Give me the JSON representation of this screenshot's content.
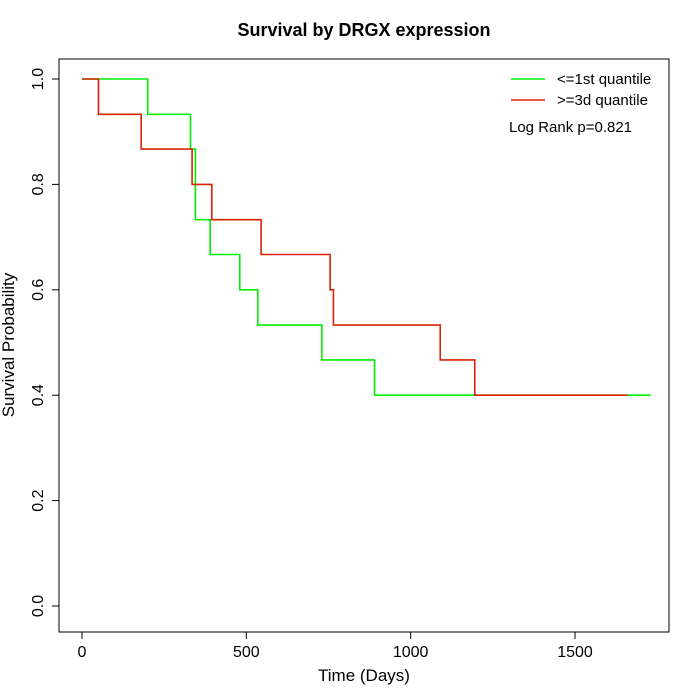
{
  "chart_data": {
    "type": "line",
    "title": "Survival by DRGX expression",
    "xlabel": "Time (Days)",
    "ylabel": "Survival Probability",
    "xlim": [
      0,
      1800
    ],
    "ylim": [
      0,
      1.0
    ],
    "x_ticks": [
      0,
      500,
      1000,
      1500
    ],
    "y_ticks": [
      0.0,
      0.2,
      0.4,
      0.6,
      0.8,
      1.0
    ],
    "x_tick_labels": [
      "0",
      "500",
      "1000",
      "1500"
    ],
    "y_tick_labels": [
      "0.0",
      "0.2",
      "0.4",
      "0.6",
      "0.8",
      "1.0"
    ],
    "grid": false,
    "legend_position": "top-right",
    "series": [
      {
        "name": "<=1st quantile",
        "color": "#00ee00",
        "steps": [
          [
            0,
            1.0
          ],
          [
            200,
            0.933
          ],
          [
            330,
            0.867
          ],
          [
            345,
            0.733
          ],
          [
            390,
            0.667
          ],
          [
            480,
            0.6
          ],
          [
            535,
            0.533
          ],
          [
            730,
            0.467
          ],
          [
            890,
            0.4
          ],
          [
            1730,
            0.4
          ]
        ]
      },
      {
        "name": ">=3d quantile",
        "color": "#dd2200",
        "steps": [
          [
            0,
            1.0
          ],
          [
            50,
            0.933
          ],
          [
            180,
            0.867
          ],
          [
            335,
            0.8
          ],
          [
            395,
            0.733
          ],
          [
            545,
            0.667
          ],
          [
            755,
            0.6
          ],
          [
            765,
            0.533
          ],
          [
            1090,
            0.467
          ],
          [
            1195,
            0.4
          ],
          [
            1660,
            0.4
          ]
        ]
      }
    ],
    "annotation": "Log Rank p=0.821"
  }
}
